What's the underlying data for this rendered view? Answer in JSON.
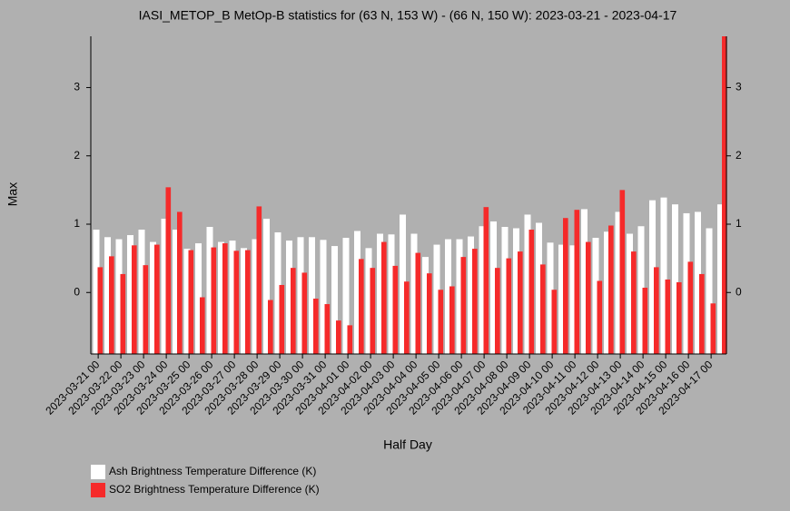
{
  "chart_data": {
    "type": "bar",
    "title": "IASI_METOP_B MetOp-B statistics for (63 N, 153 W) - (66 N, 150 W): 2023-03-21 - 2023-04-17",
    "xlabel": "Half Day",
    "ylabel": "Max",
    "categories": [
      "2023-03-21 00",
      null,
      "2023-03-22 00",
      null,
      "2023-03-23 00",
      null,
      "2023-03-24 00",
      null,
      "2023-03-25 00",
      null,
      "2023-03-26 00",
      null,
      "2023-03-27 00",
      null,
      "2023-03-28 00",
      null,
      "2023-03-29 00",
      null,
      "2023-03-30 00",
      null,
      "2023-03-31 00",
      null,
      "2023-04-01 00",
      null,
      "2023-04-02 00",
      null,
      "2023-04-03 00",
      null,
      "2023-04-04 00",
      null,
      "2023-04-05 00",
      null,
      "2023-04-06 00",
      null,
      "2023-04-07 00",
      null,
      "2023-04-08 00",
      null,
      "2023-04-09 00",
      null,
      "2023-04-10 00",
      null,
      "2023-04-11 00",
      null,
      "2023-04-12 00",
      null,
      "2023-04-13 00",
      null,
      "2023-04-14 00",
      null,
      "2023-04-15 00",
      null,
      "2023-04-16 00",
      null,
      "2023-04-17 00",
      null
    ],
    "series": [
      {
        "name": "Ash Brightness Temperature Difference (K)",
        "color": "#ffffff",
        "values": [
          0.92,
          0.81,
          0.78,
          0.84,
          0.92,
          0.74,
          1.08,
          0.92,
          0.64,
          0.72,
          0.96,
          0.74,
          0.76,
          0.65,
          0.78,
          1.08,
          0.88,
          0.76,
          0.81,
          0.81,
          0.77,
          0.68,
          0.8,
          0.9,
          0.65,
          0.86,
          0.85,
          1.14,
          0.86,
          0.52,
          0.7,
          0.78,
          0.78,
          0.82,
          0.97,
          1.04,
          0.96,
          0.94,
          1.14,
          1.02,
          0.73,
          0.7,
          0.69,
          1.22,
          0.8,
          0.89,
          1.18,
          0.86,
          0.97,
          1.35,
          1.39,
          1.29,
          1.16,
          1.18,
          0.94,
          1.29
        ]
      },
      {
        "name": "SO2 Brightness Temperature Difference (K)",
        "color": "#f52a2a",
        "values": [
          0.37,
          0.53,
          0.27,
          0.69,
          0.4,
          0.7,
          1.54,
          1.18,
          0.62,
          -0.07,
          0.66,
          0.72,
          0.61,
          0.62,
          1.26,
          -0.11,
          0.11,
          0.36,
          0.29,
          -0.09,
          -0.17,
          -0.41,
          -0.48,
          0.49,
          0.36,
          0.74,
          0.39,
          0.16,
          0.58,
          0.28,
          0.04,
          0.09,
          0.52,
          0.64,
          1.25,
          0.36,
          0.5,
          0.6,
          0.92,
          0.41,
          0.04,
          1.09,
          1.21,
          0.74,
          0.17,
          0.98,
          1.5,
          0.6,
          0.07,
          0.37,
          0.19,
          0.15,
          0.45,
          0.27,
          -0.16,
          3.75
        ]
      }
    ],
    "ylim": [
      -0.9,
      3.75
    ],
    "yticks": [
      0,
      1,
      2,
      3
    ]
  }
}
